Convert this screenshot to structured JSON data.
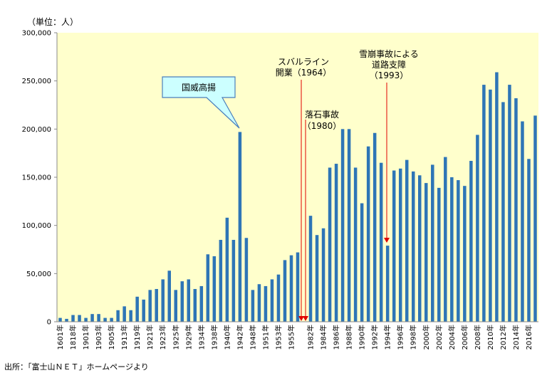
{
  "unit_label": "（単位：人）",
  "source_note": "出所：「富士山ＮＥＴ」ホームページより",
  "colors": {
    "plot_bg": "#FFFFCC",
    "bar": "#2E75B6",
    "arrow": "#E00000",
    "callout_fill": "#CCFFFF",
    "callout_stroke": "#4A7EBB"
  },
  "chart_data": {
    "type": "bar",
    "title": "",
    "xlabel": "",
    "ylabel": "",
    "ylim": [
      0,
      300000
    ],
    "yticks": [
      "0",
      "50,000",
      "100,000",
      "150,000",
      "200,000",
      "250,000",
      "300,000"
    ],
    "ytick_values": [
      0,
      50000,
      100000,
      150000,
      200000,
      250000,
      300000
    ],
    "grid": false,
    "xtick_labels": [
      {
        "index": 0,
        "text": "1601年"
      },
      {
        "index": 2,
        "text": "1818年"
      },
      {
        "index": 4,
        "text": "1901年"
      },
      {
        "index": 6,
        "text": "1903年"
      },
      {
        "index": 8,
        "text": "1905年"
      },
      {
        "index": 10,
        "text": "1913年"
      },
      {
        "index": 12,
        "text": "1919年"
      },
      {
        "index": 14,
        "text": "1921年"
      },
      {
        "index": 16,
        "text": "1923年"
      },
      {
        "index": 18,
        "text": "1925年"
      },
      {
        "index": 20,
        "text": "1929年"
      },
      {
        "index": 22,
        "text": "1934年"
      },
      {
        "index": 24,
        "text": "1938年"
      },
      {
        "index": 26,
        "text": "1940年"
      },
      {
        "index": 28,
        "text": "1942年"
      },
      {
        "index": 30,
        "text": "1948年"
      },
      {
        "index": 32,
        "text": "1951年"
      },
      {
        "index": 34,
        "text": "1953年"
      },
      {
        "index": 36,
        "text": "1955年"
      },
      {
        "index": 39,
        "text": "1982年"
      },
      {
        "index": 41,
        "text": "1984年"
      },
      {
        "index": 43,
        "text": "1986年"
      },
      {
        "index": 45,
        "text": "1988年"
      },
      {
        "index": 47,
        "text": "1990年"
      },
      {
        "index": 49,
        "text": "1992年"
      },
      {
        "index": 51,
        "text": "1994年"
      },
      {
        "index": 53,
        "text": "1996年"
      },
      {
        "index": 55,
        "text": "1998年"
      },
      {
        "index": 57,
        "text": "2000年"
      },
      {
        "index": 59,
        "text": "2002年"
      },
      {
        "index": 61,
        "text": "2004年"
      },
      {
        "index": 63,
        "text": "2006年"
      },
      {
        "index": 65,
        "text": "2008年"
      },
      {
        "index": 67,
        "text": "2010年"
      },
      {
        "index": 69,
        "text": "2012年"
      },
      {
        "index": 71,
        "text": "2014年"
      },
      {
        "index": 73,
        "text": "2016年"
      }
    ],
    "values": [
      4000,
      3000,
      7000,
      7000,
      4000,
      8000,
      8000,
      4000,
      4000,
      12000,
      16000,
      12000,
      26000,
      23000,
      33000,
      34000,
      44000,
      53000,
      33000,
      42000,
      44000,
      34000,
      37000,
      70000,
      68000,
      85000,
      108000,
      85000,
      197000,
      87000,
      33000,
      39000,
      37000,
      44000,
      49000,
      64000,
      69000,
      72000,
      null,
      110000,
      90000,
      97000,
      160000,
      164000,
      200000,
      200000,
      160000,
      123000,
      182000,
      196000,
      165000,
      79000,
      157000,
      159000,
      168000,
      156000,
      152000,
      144000,
      163000,
      139000,
      171000,
      150000,
      147000,
      141000,
      167000,
      194000,
      246000,
      241000,
      259000,
      228000,
      246000,
      232000,
      208000,
      169000,
      214000
    ],
    "annotations": [
      {
        "id": "kokui",
        "lines": [
          "国威高揚"
        ],
        "target_index": 28,
        "style": "callout"
      },
      {
        "id": "subaru",
        "lines": [
          "スバルライン",
          "開業（1964）"
        ],
        "target_index": 38,
        "style": "arrow"
      },
      {
        "id": "rakuseki",
        "lines": [
          "落石事故",
          "（1980）"
        ],
        "target_index": 38,
        "style": "arrow"
      },
      {
        "id": "nadare",
        "lines": [
          "雪崩事故による",
          "道路支障",
          "（1993）"
        ],
        "target_index": 51,
        "style": "arrow"
      }
    ]
  }
}
